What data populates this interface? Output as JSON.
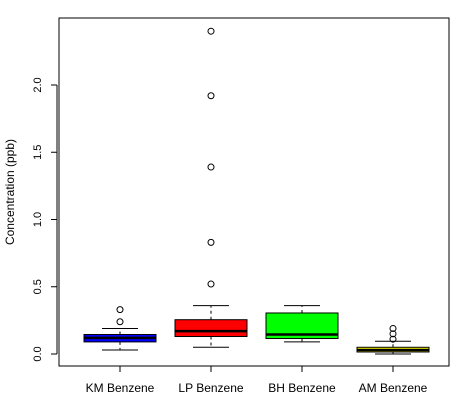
{
  "chart_data": {
    "type": "boxplot",
    "title": "",
    "xlabel": "",
    "ylabel": "Concentration (ppb)",
    "ylim": [
      -0.1,
      2.45
    ],
    "yticks": [
      0.0,
      0.5,
      1.0,
      1.5,
      2.0
    ],
    "ytick_labels": [
      "0.0",
      "0.5",
      "1.0",
      "1.5",
      "2.0"
    ],
    "grid": false,
    "categories": [
      "KM Benzene",
      "LP Benzene",
      "BH Benzene",
      "AM Benzene"
    ],
    "series": [
      {
        "label": "KM Benzene",
        "color": "#0000ff",
        "whisker_low": 0.03,
        "q1": 0.09,
        "median": 0.12,
        "q3": 0.145,
        "whisker_high": 0.19,
        "outliers": [
          0.24,
          0.33
        ]
      },
      {
        "label": "LP Benzene",
        "color": "#ff0000",
        "whisker_low": 0.05,
        "q1": 0.13,
        "median": 0.17,
        "q3": 0.255,
        "whisker_high": 0.36,
        "outliers": [
          0.52,
          0.83,
          1.39,
          1.92,
          2.4
        ]
      },
      {
        "label": "BH Benzene",
        "color": "#00ff00",
        "whisker_low": 0.09,
        "q1": 0.115,
        "median": 0.145,
        "q3": 0.305,
        "whisker_high": 0.36,
        "outliers": []
      },
      {
        "label": "AM Benzene",
        "color": "#ffff00",
        "whisker_low": 0.0,
        "q1": 0.015,
        "median": 0.03,
        "q3": 0.05,
        "whisker_high": 0.095,
        "outliers": [
          0.11,
          0.15,
          0.19
        ]
      }
    ]
  }
}
